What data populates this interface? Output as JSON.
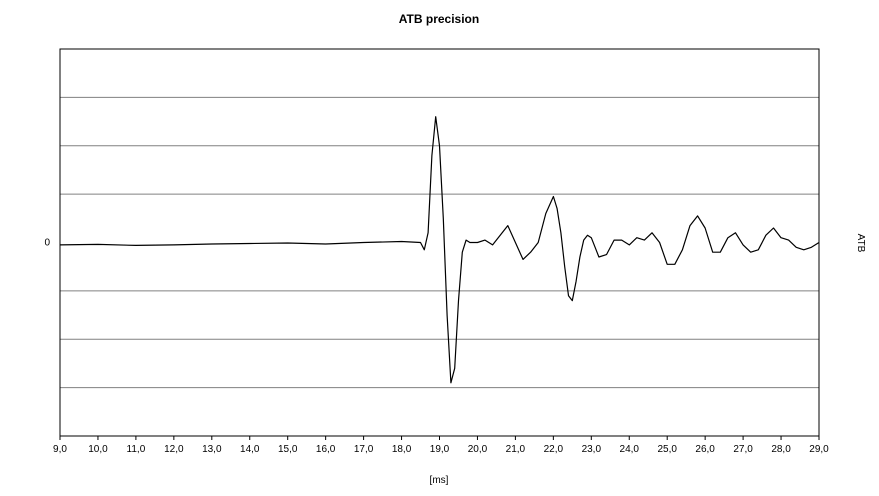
{
  "chart_data": {
    "type": "line",
    "title": "ATB precision",
    "xlabel": "[ms]",
    "ylabel": "ATB",
    "xlim": [
      9.0,
      29.0
    ],
    "ylim": [
      -4,
      4
    ],
    "y_tick_labels": [
      {
        "value": 0,
        "label": "0"
      }
    ],
    "x_ticks": [
      {
        "value": 9,
        "label": "9,0"
      },
      {
        "value": 10,
        "label": "10,0"
      },
      {
        "value": 11,
        "label": "11,0"
      },
      {
        "value": 12,
        "label": "12,0"
      },
      {
        "value": 13,
        "label": "13,0"
      },
      {
        "value": 14,
        "label": "14,0"
      },
      {
        "value": 15,
        "label": "15,0"
      },
      {
        "value": 16,
        "label": "16,0"
      },
      {
        "value": 17,
        "label": "17,0"
      },
      {
        "value": 18,
        "label": "18,0"
      },
      {
        "value": 19,
        "label": "19,0"
      },
      {
        "value": 20,
        "label": "20,0"
      },
      {
        "value": 21,
        "label": "21,0"
      },
      {
        "value": 22,
        "label": "22,0"
      },
      {
        "value": 23,
        "label": "23,0"
      },
      {
        "value": 24,
        "label": "24,0"
      },
      {
        "value": 25,
        "label": "25,0"
      },
      {
        "value": 26,
        "label": "26,0"
      },
      {
        "value": 27,
        "label": "27,0"
      },
      {
        "value": 28,
        "label": "28,0"
      },
      {
        "value": 29,
        "label": "29,0"
      }
    ],
    "grid": {
      "horizontal": true,
      "vertical": false,
      "lines_at": [
        -3,
        -2,
        -1,
        1,
        2,
        3
      ]
    },
    "line_color": "#000000",
    "grid_color": "#808080",
    "series": [
      {
        "x": [
          9.0,
          10.0,
          11.0,
          12.0,
          13.0,
          14.0,
          15.0,
          16.0,
          17.0,
          18.0,
          18.5,
          18.6,
          18.7,
          18.8,
          18.9,
          19.0,
          19.1,
          19.2,
          19.3,
          19.4,
          19.5,
          19.6,
          19.7,
          19.8,
          19.9,
          20.0,
          20.2,
          20.4,
          20.6,
          20.8,
          21.0,
          21.2,
          21.4,
          21.6,
          21.8,
          22.0,
          22.1,
          22.2,
          22.3,
          22.4,
          22.5,
          22.6,
          22.7,
          22.8,
          22.9,
          23.0,
          23.1,
          23.2,
          23.4,
          23.6,
          23.8,
          24.0,
          24.2,
          24.4,
          24.6,
          24.8,
          25.0,
          25.2,
          25.4,
          25.6,
          25.8,
          26.0,
          26.2,
          26.4,
          26.6,
          26.8,
          27.0,
          27.2,
          27.4,
          27.6,
          27.8,
          28.0,
          28.2,
          28.4,
          28.6,
          28.8,
          29.0
        ],
        "y": [
          -0.05,
          -0.04,
          -0.06,
          -0.05,
          -0.03,
          -0.02,
          -0.01,
          -0.03,
          0.0,
          0.02,
          0.0,
          -0.15,
          0.2,
          1.8,
          2.6,
          2.0,
          0.5,
          -1.5,
          -2.9,
          -2.6,
          -1.2,
          -0.2,
          0.05,
          0.0,
          0.0,
          0.0,
          0.05,
          -0.05,
          0.15,
          0.35,
          0.0,
          -0.35,
          -0.2,
          0.0,
          0.6,
          0.95,
          0.7,
          0.2,
          -0.5,
          -1.1,
          -1.2,
          -0.8,
          -0.3,
          0.05,
          0.15,
          0.1,
          -0.1,
          -0.3,
          -0.25,
          0.05,
          0.05,
          -0.05,
          0.1,
          0.05,
          0.2,
          0.0,
          -0.45,
          -0.45,
          -0.15,
          0.35,
          0.55,
          0.3,
          -0.2,
          -0.2,
          0.1,
          0.2,
          -0.05,
          -0.2,
          -0.15,
          0.15,
          0.3,
          0.1,
          0.05,
          -0.1,
          -0.15,
          -0.1,
          0.0
        ]
      }
    ]
  }
}
